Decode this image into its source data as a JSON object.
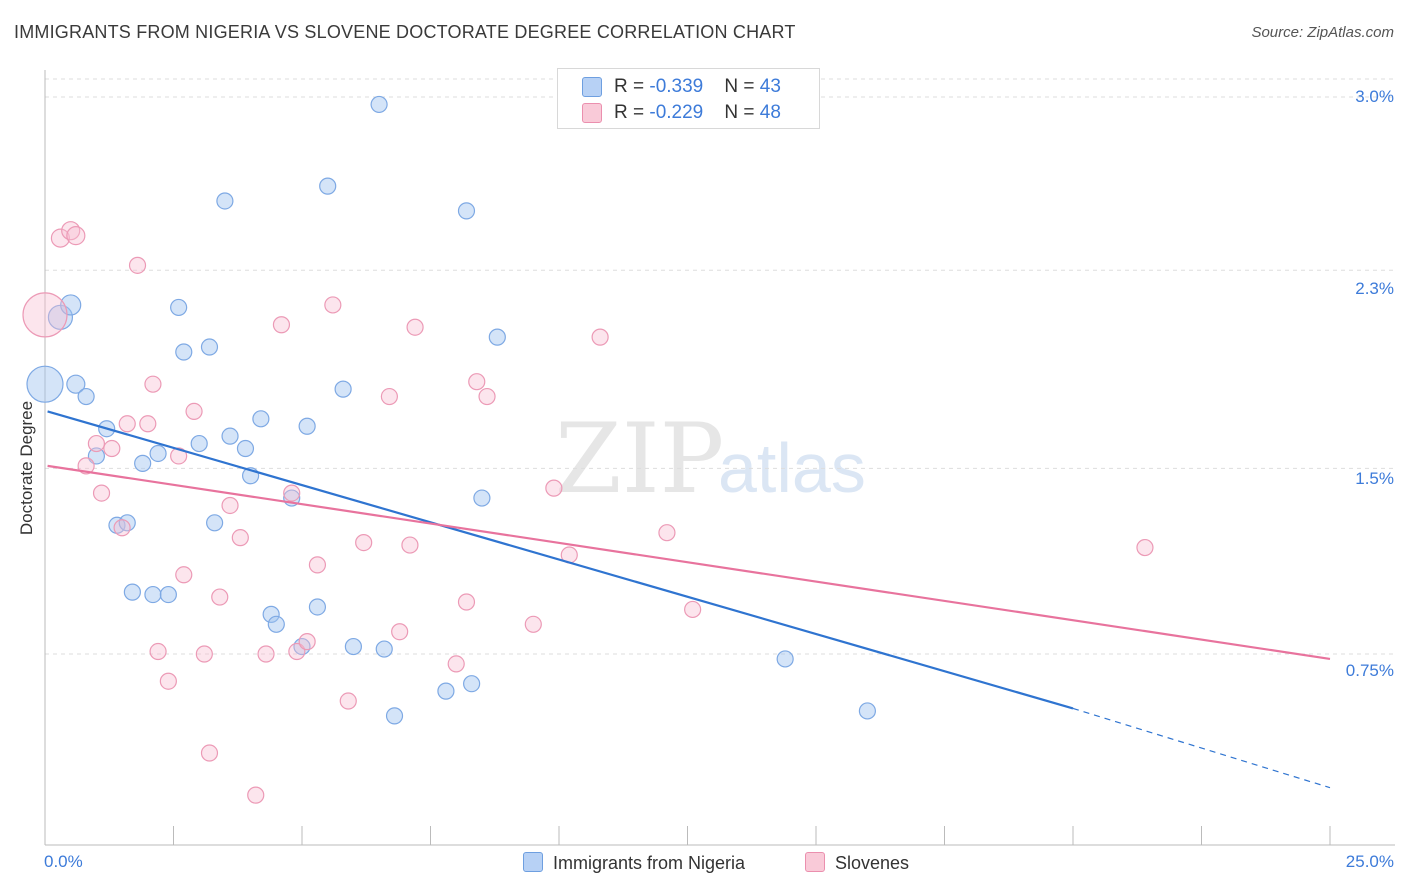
{
  "title": "IMMIGRANTS FROM NIGERIA VS SLOVENE DOCTORATE DEGREE CORRELATION CHART",
  "source": "Source: ZipAtlas.com",
  "watermark": {
    "zip": "ZIP",
    "atlas": "atlas"
  },
  "colors": {
    "nigeria": "#2f74d0",
    "slovenes": "#e8739d",
    "tick_text": "#3d7bd9"
  },
  "legend_top": {
    "rows": [
      {
        "r_label": "R = ",
        "r_value": "-0.339",
        "n_label": "N = ",
        "n_value": "43"
      },
      {
        "r_label": "R = ",
        "r_value": "-0.229",
        "n_label": "N = ",
        "n_value": "48"
      }
    ]
  },
  "chart_data": {
    "type": "scatter",
    "title": "IMMIGRANTS FROM NIGERIA VS SLOVENE DOCTORATE DEGREE CORRELATION CHART",
    "xlabel": "",
    "ylabel": "Doctorate Degree",
    "xlim": [
      0,
      25
    ],
    "ylim": [
      0,
      3.1
    ],
    "x_tick_labels": [
      "0.0%",
      "25.0%"
    ],
    "y_ticks": [
      0.75,
      1.5,
      2.3,
      3.0
    ],
    "y_tick_labels": [
      "0.75%",
      "1.5%",
      "2.3%",
      "3.0%"
    ],
    "grid": "horizontal dashed",
    "legend_position": "bottom",
    "series": [
      {
        "name": "Immigrants from Nigeria",
        "R": -0.339,
        "N": 43,
        "trend": {
          "x0": 0.05,
          "y0": 1.73,
          "x1": 20,
          "y1": 0.53,
          "dash_to_x": 25,
          "dash_to_y": 0.21
        },
        "points": [
          [
            0.0,
            1.84,
            18
          ],
          [
            0.3,
            2.11,
            12
          ],
          [
            0.5,
            2.16,
            10
          ],
          [
            0.6,
            1.84,
            9
          ],
          [
            0.8,
            1.79,
            8
          ],
          [
            1.0,
            1.55,
            8
          ],
          [
            1.2,
            1.66,
            8
          ],
          [
            1.4,
            1.27,
            8
          ],
          [
            1.6,
            1.28,
            8
          ],
          [
            1.7,
            1.0,
            8
          ],
          [
            1.9,
            1.52,
            8
          ],
          [
            2.1,
            0.99,
            8
          ],
          [
            2.2,
            1.56,
            8
          ],
          [
            2.4,
            0.99,
            8
          ],
          [
            2.6,
            2.15,
            8
          ],
          [
            2.7,
            1.97,
            8
          ],
          [
            3.0,
            1.6,
            8
          ],
          [
            3.2,
            1.99,
            8
          ],
          [
            3.3,
            1.28,
            8
          ],
          [
            3.5,
            2.58,
            8
          ],
          [
            3.6,
            1.63,
            8
          ],
          [
            3.9,
            1.58,
            8
          ],
          [
            4.0,
            1.47,
            8
          ],
          [
            4.2,
            1.7,
            8
          ],
          [
            4.4,
            0.91,
            8
          ],
          [
            4.5,
            0.87,
            8
          ],
          [
            4.8,
            1.38,
            8
          ],
          [
            5.0,
            0.78,
            8
          ],
          [
            5.1,
            1.67,
            8
          ],
          [
            5.3,
            0.94,
            8
          ],
          [
            5.5,
            2.64,
            8
          ],
          [
            5.8,
            1.82,
            8
          ],
          [
            6.0,
            0.78,
            8
          ],
          [
            6.5,
            2.97,
            8
          ],
          [
            6.6,
            0.77,
            8
          ],
          [
            6.8,
            0.5,
            8
          ],
          [
            7.8,
            0.6,
            8
          ],
          [
            8.2,
            2.54,
            8
          ],
          [
            8.3,
            0.63,
            8
          ],
          [
            8.5,
            1.38,
            8
          ],
          [
            8.8,
            2.03,
            8
          ],
          [
            14.4,
            0.73,
            8
          ],
          [
            16.0,
            0.52,
            8
          ]
        ]
      },
      {
        "name": "Slovenes",
        "R": -0.229,
        "N": 48,
        "trend": {
          "x0": 0.05,
          "y0": 1.51,
          "x1": 25,
          "y1": 0.73
        },
        "points": [
          [
            0.0,
            2.12,
            22
          ],
          [
            0.3,
            2.43,
            9
          ],
          [
            0.5,
            2.46,
            9
          ],
          [
            0.6,
            2.44,
            9
          ],
          [
            0.8,
            1.51,
            8
          ],
          [
            1.0,
            1.6,
            8
          ],
          [
            1.1,
            1.4,
            8
          ],
          [
            1.3,
            1.58,
            8
          ],
          [
            1.5,
            1.26,
            8
          ],
          [
            1.6,
            1.68,
            8
          ],
          [
            1.8,
            2.32,
            8
          ],
          [
            2.0,
            1.68,
            8
          ],
          [
            2.1,
            1.84,
            8
          ],
          [
            2.2,
            0.76,
            8
          ],
          [
            2.4,
            0.64,
            8
          ],
          [
            2.6,
            1.55,
            8
          ],
          [
            2.7,
            1.07,
            8
          ],
          [
            2.9,
            1.73,
            8
          ],
          [
            3.1,
            0.75,
            8
          ],
          [
            3.2,
            0.35,
            8
          ],
          [
            3.4,
            0.98,
            8
          ],
          [
            3.6,
            1.35,
            8
          ],
          [
            3.8,
            1.22,
            8
          ],
          [
            4.1,
            0.18,
            8
          ],
          [
            4.3,
            0.75,
            8
          ],
          [
            4.6,
            2.08,
            8
          ],
          [
            4.8,
            1.4,
            8
          ],
          [
            4.9,
            0.76,
            8
          ],
          [
            5.1,
            0.8,
            8
          ],
          [
            5.3,
            1.11,
            8
          ],
          [
            5.6,
            2.16,
            8
          ],
          [
            5.9,
            0.56,
            8
          ],
          [
            6.2,
            1.2,
            8
          ],
          [
            6.7,
            1.79,
            8
          ],
          [
            6.9,
            0.84,
            8
          ],
          [
            7.1,
            1.19,
            8
          ],
          [
            7.2,
            2.07,
            8
          ],
          [
            8.0,
            0.71,
            8
          ],
          [
            8.2,
            0.96,
            8
          ],
          [
            8.4,
            1.85,
            8
          ],
          [
            8.6,
            1.79,
            8
          ],
          [
            9.5,
            0.87,
            8
          ],
          [
            9.9,
            1.42,
            8
          ],
          [
            10.2,
            1.15,
            8
          ],
          [
            10.8,
            2.03,
            8
          ],
          [
            12.1,
            1.24,
            8
          ],
          [
            12.6,
            0.93,
            8
          ],
          [
            21.4,
            1.18,
            8
          ]
        ]
      }
    ]
  },
  "legend_bottom": [
    {
      "label": "Immigrants from Nigeria"
    },
    {
      "label": "Slovenes"
    }
  ]
}
